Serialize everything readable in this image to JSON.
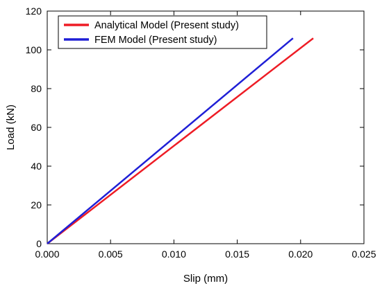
{
  "chart_data": {
    "type": "line",
    "title": "",
    "xlabel": "Slip (mm)",
    "ylabel": "Load (kN)",
    "xlim": [
      0,
      0.025
    ],
    "ylim": [
      0,
      120
    ],
    "xticks": [
      0,
      0.005,
      0.01,
      0.015,
      0.02,
      0.025
    ],
    "xtick_labels": [
      "0.000",
      "0.005",
      "0.010",
      "0.015",
      "0.020",
      "0.025"
    ],
    "yticks": [
      0,
      20,
      40,
      60,
      80,
      100,
      120
    ],
    "ytick_labels": [
      "0",
      "20",
      "40",
      "60",
      "80",
      "100",
      "120"
    ],
    "grid": false,
    "legend_position": "top-left",
    "series": [
      {
        "name": "Analytical Model (Present study)",
        "color": "#ee1c25",
        "x": [
          0,
          0.021
        ],
        "y": [
          0,
          106
        ]
      },
      {
        "name": "FEM Model (Present study)",
        "color": "#1f1fd6",
        "x": [
          0,
          0.0194
        ],
        "y": [
          0,
          106
        ]
      }
    ]
  }
}
